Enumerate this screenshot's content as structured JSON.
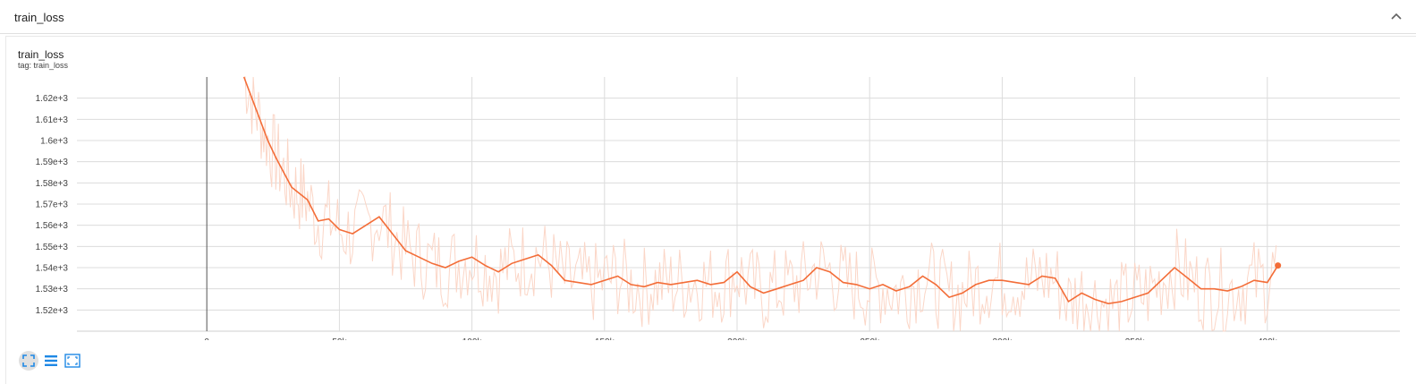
{
  "section": {
    "title": "train_loss"
  },
  "card": {
    "title": "train_loss",
    "tag": "tag: train_loss"
  },
  "icons": {
    "collapse": "chevron-up-icon",
    "fit": "fit-domain-icon",
    "log": "lines-icon",
    "expand": "expand-icon"
  },
  "colors": {
    "smoothed": "#f36d38",
    "raw": "#fbd6c7",
    "grid": "#dcdcdc",
    "accent": "#1e88e5"
  },
  "chart_data": {
    "type": "line",
    "title": "train_loss",
    "xlabel": "",
    "ylabel": "",
    "xlim": [
      -78000,
      450000
    ],
    "ylim": [
      1510,
      1630
    ],
    "x_ticks": [
      0,
      50000,
      100000,
      150000,
      200000,
      250000,
      300000,
      350000,
      400000
    ],
    "x_tick_labels": [
      "0",
      "50k",
      "100k",
      "150k",
      "200k",
      "250k",
      "300k",
      "350k",
      "400k"
    ],
    "y_ticks": [
      1520,
      1530,
      1540,
      1550,
      1560,
      1570,
      1580,
      1590,
      1600,
      1610,
      1620
    ],
    "y_tick_labels": [
      "1.52e+3",
      "1.53e+3",
      "1.54e+3",
      "1.55e+3",
      "1.56e+3",
      "1.57e+3",
      "1.58e+3",
      "1.59e+3",
      "1.6e+3",
      "1.61e+3",
      "1.62e+3"
    ],
    "grid": true,
    "legend": "none",
    "series": [
      {
        "x": [
          14000,
          17000,
          20000,
          23000,
          26000,
          29000,
          32000,
          35000,
          38000,
          42000,
          46000,
          50000,
          55000,
          60000,
          65000,
          70000,
          75000,
          80000,
          85000,
          90000,
          95000,
          100000,
          105000,
          110000,
          115000,
          120000,
          125000,
          130000,
          135000,
          140000,
          145000,
          150000,
          155000,
          160000,
          165000,
          170000,
          175000,
          180000,
          185000,
          190000,
          195000,
          200000,
          205000,
          210000,
          215000,
          220000,
          225000,
          230000,
          235000,
          240000,
          245000,
          250000,
          255000,
          260000,
          265000,
          270000,
          275000,
          280000,
          285000,
          290000,
          295000,
          300000,
          305000,
          310000,
          315000,
          320000,
          325000,
          330000,
          335000,
          340000,
          345000,
          350000,
          355000,
          360000,
          365000,
          370000,
          375000,
          380000,
          385000,
          390000,
          395000,
          400000,
          404000
        ],
        "y": [
          1632,
          1620,
          1610,
          1600,
          1592,
          1585,
          1578,
          1575,
          1572,
          1562,
          1563,
          1558,
          1556,
          1560,
          1564,
          1556,
          1548,
          1545,
          1542,
          1540,
          1543,
          1545,
          1541,
          1538,
          1542,
          1544,
          1546,
          1541,
          1534,
          1533,
          1532,
          1534,
          1536,
          1532,
          1531,
          1533,
          1532,
          1533,
          1534,
          1532,
          1533,
          1538,
          1531,
          1528,
          1530,
          1532,
          1534,
          1540,
          1538,
          1533,
          1532,
          1530,
          1532,
          1529,
          1531,
          1536,
          1532,
          1526,
          1528,
          1532,
          1534,
          1534,
          1533,
          1532,
          1536,
          1535,
          1524,
          1528,
          1525,
          1523,
          1524,
          1526,
          1528,
          1534,
          1540,
          1535,
          1530,
          1530,
          1529,
          1531,
          1534,
          1533,
          1541
        ]
      }
    ]
  }
}
